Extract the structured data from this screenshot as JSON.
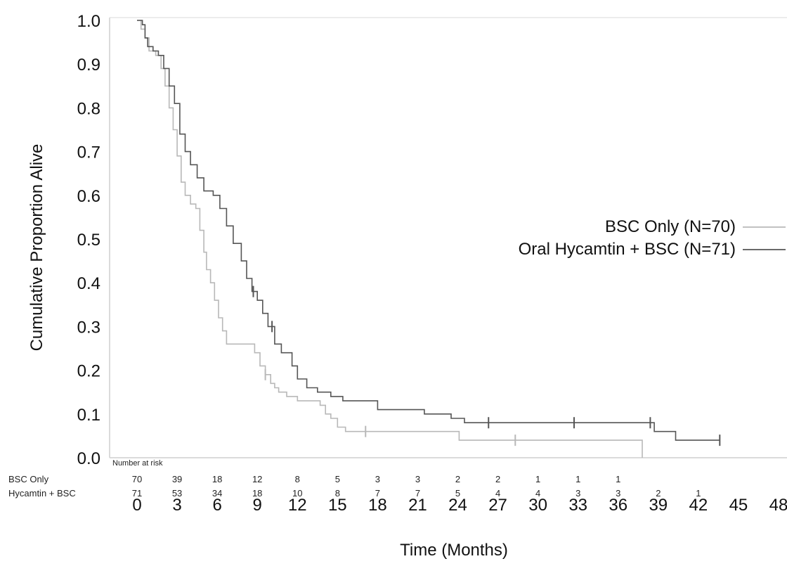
{
  "chart_data": {
    "type": "line",
    "step": true,
    "xlabel": "Time (Months)",
    "ylabel": "Cumulative Proportion Alive",
    "xlim": [
      0,
      48
    ],
    "ylim": [
      0,
      1.0
    ],
    "xticks": [
      "0",
      "3",
      "6",
      "9",
      "12",
      "15",
      "18",
      "21",
      "24",
      "27",
      "30",
      "33",
      "36",
      "39",
      "42",
      "45",
      "48"
    ],
    "yticks": [
      "0.0",
      "0.1",
      "0.2",
      "0.3",
      "0.4",
      "0.5",
      "0.6",
      "0.7",
      "0.8",
      "0.9",
      "1.0"
    ],
    "legend_position": "right",
    "series": [
      {
        "name": "BSC Only (N=70)",
        "color": "#b8b8b8",
        "points": [
          [
            0,
            1.0
          ],
          [
            0.3,
            0.98
          ],
          [
            0.6,
            0.96
          ],
          [
            0.9,
            0.93
          ],
          [
            1.4,
            0.92
          ],
          [
            1.8,
            0.89
          ],
          [
            2.1,
            0.85
          ],
          [
            2.4,
            0.8
          ],
          [
            2.7,
            0.75
          ],
          [
            3.0,
            0.69
          ],
          [
            3.3,
            0.63
          ],
          [
            3.6,
            0.6
          ],
          [
            4.0,
            0.58
          ],
          [
            4.4,
            0.57
          ],
          [
            4.7,
            0.52
          ],
          [
            5.0,
            0.47
          ],
          [
            5.2,
            0.43
          ],
          [
            5.5,
            0.4
          ],
          [
            5.8,
            0.36
          ],
          [
            6.1,
            0.32
          ],
          [
            6.4,
            0.29
          ],
          [
            6.7,
            0.26
          ],
          [
            8.8,
            0.24
          ],
          [
            9.2,
            0.21
          ],
          [
            9.6,
            0.19
          ],
          [
            10.0,
            0.17
          ],
          [
            10.3,
            0.16
          ],
          [
            10.6,
            0.15
          ],
          [
            11.2,
            0.14
          ],
          [
            12.0,
            0.13
          ],
          [
            13.7,
            0.12
          ],
          [
            14.1,
            0.1
          ],
          [
            14.5,
            0.09
          ],
          [
            15.0,
            0.07
          ],
          [
            15.6,
            0.06
          ],
          [
            24.1,
            0.04
          ],
          [
            37.8,
            0.0
          ]
        ],
        "censor_times": [
          9.6,
          17.1,
          28.3
        ]
      },
      {
        "name": "Oral Hycamtin + BSC (N=71)",
        "color": "#555555",
        "points": [
          [
            0,
            1.0
          ],
          [
            0.4,
            0.99
          ],
          [
            0.6,
            0.96
          ],
          [
            0.8,
            0.94
          ],
          [
            1.2,
            0.93
          ],
          [
            1.6,
            0.92
          ],
          [
            2.0,
            0.89
          ],
          [
            2.4,
            0.85
          ],
          [
            2.8,
            0.81
          ],
          [
            3.2,
            0.74
          ],
          [
            3.6,
            0.7
          ],
          [
            4.0,
            0.67
          ],
          [
            4.5,
            0.64
          ],
          [
            5.0,
            0.61
          ],
          [
            5.7,
            0.6
          ],
          [
            6.2,
            0.57
          ],
          [
            6.7,
            0.53
          ],
          [
            7.2,
            0.49
          ],
          [
            7.8,
            0.45
          ],
          [
            8.2,
            0.41
          ],
          [
            8.6,
            0.38
          ],
          [
            9.0,
            0.36
          ],
          [
            9.4,
            0.33
          ],
          [
            9.8,
            0.3
          ],
          [
            10.3,
            0.26
          ],
          [
            10.8,
            0.24
          ],
          [
            11.6,
            0.21
          ],
          [
            12.0,
            0.18
          ],
          [
            12.7,
            0.16
          ],
          [
            13.5,
            0.15
          ],
          [
            14.5,
            0.14
          ],
          [
            15.4,
            0.13
          ],
          [
            18.0,
            0.11
          ],
          [
            21.5,
            0.1
          ],
          [
            23.5,
            0.09
          ],
          [
            24.5,
            0.08
          ],
          [
            38.7,
            0.06
          ],
          [
            40.3,
            0.04
          ]
        ],
        "censor_times": [
          8.7,
          10.1,
          26.3,
          32.7,
          38.4,
          43.6
        ]
      }
    ],
    "risk_table": {
      "header": "Number at risk",
      "rows": [
        {
          "label": "BSC Only",
          "values": [
            "70",
            "39",
            "18",
            "12",
            "8",
            "5",
            "3",
            "3",
            "2",
            "2",
            "1",
            "1",
            "1"
          ]
        },
        {
          "label": "Hycamtin + BSC",
          "values": [
            "71",
            "53",
            "34",
            "18",
            "10",
            "8",
            "7",
            "7",
            "5",
            "4",
            "4",
            "3",
            "3",
            "2",
            "1"
          ]
        }
      ]
    }
  }
}
